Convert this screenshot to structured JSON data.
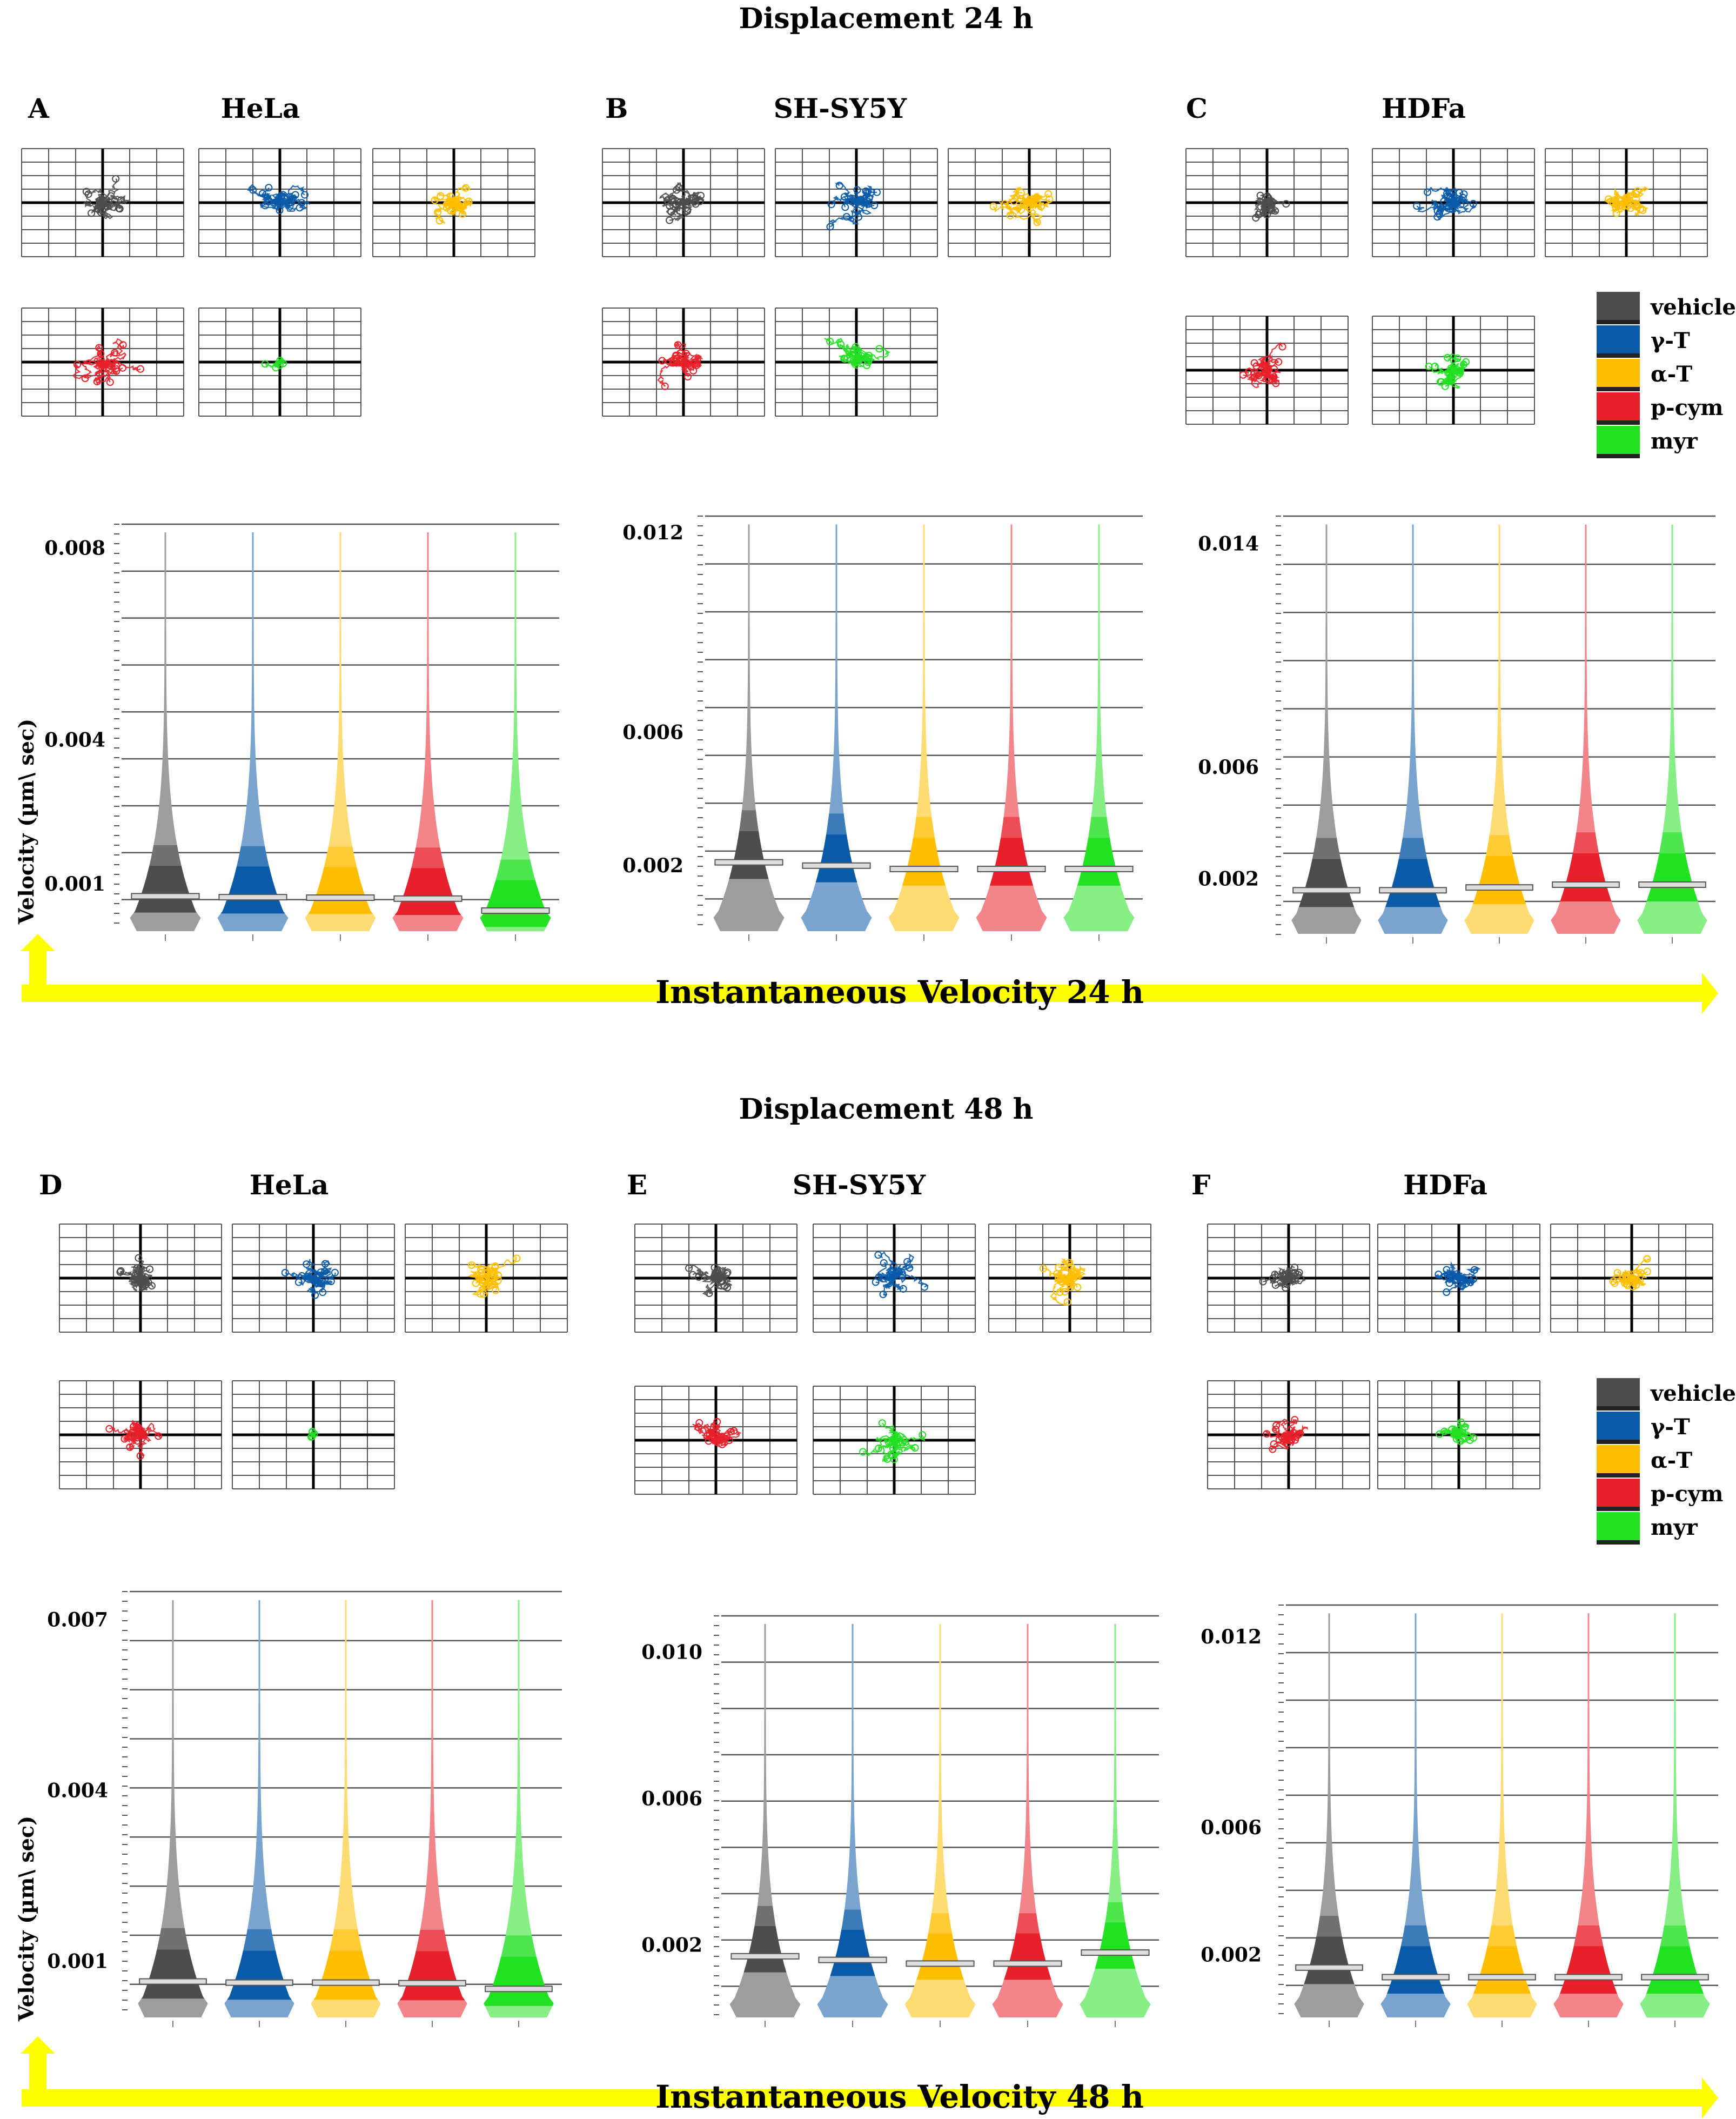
{
  "figure": {
    "section_titles": [
      "Displacement 24 h",
      "Displacement 48 h"
    ],
    "arrow_labels": [
      "Instantaneous  Velocity 24 h",
      "Instantaneous  Velocity 48 h"
    ],
    "ylabel": "Velocity (µm\\ sec)",
    "legend": [
      {
        "label": "vehicle",
        "color": "#4d4d4d"
      },
      {
        "label": "γ-T",
        "color": "#0a5aa8"
      },
      {
        "label": "α-T",
        "color": "#ffbf00"
      },
      {
        "label": "p-cym",
        "color": "#e8202a"
      },
      {
        "label": "myr",
        "color": "#22e022"
      }
    ],
    "colors": {
      "vehicle": "#4d4d4d",
      "gamma": "#0a5aa8",
      "alpha": "#ffbf00",
      "pcym": "#e8202a",
      "myr": "#22e022",
      "arrow": "#ffff00"
    }
  },
  "chart_data": [
    {
      "type": "violin",
      "panel": "A",
      "title": "HeLa",
      "group": "24 h",
      "categories": [
        "vehicle",
        "γ-T",
        "α-T",
        "p-cym",
        "myr"
      ],
      "yticks": [
        "0.008",
        "0.004",
        "0.001"
      ],
      "ylim": [
        0,
        0.0085
      ],
      "grid": true,
      "series": [
        {
          "values": [
            0.00075,
            0.00073,
            0.00072,
            0.0007,
            0.00045
          ]
        }
      ]
    },
    {
      "type": "violin",
      "panel": "B",
      "title": "SH-SY5Y",
      "group": "24 h",
      "categories": [
        "vehicle",
        "γ-T",
        "α-T",
        "p-cym",
        "myr"
      ],
      "yticks": [
        "0.012",
        "0.006",
        "0.002"
      ],
      "ylim": [
        0,
        0.0125
      ],
      "grid": true,
      "series": [
        {
          "values": [
            0.0021,
            0.002,
            0.0019,
            0.0019,
            0.0019
          ]
        }
      ]
    },
    {
      "type": "violin",
      "panel": "C",
      "title": "HDFa",
      "group": "24 h",
      "categories": [
        "vehicle",
        "γ-T",
        "α-T",
        "p-cym",
        "myr"
      ],
      "yticks": [
        "0.014",
        "0.006",
        "0.002"
      ],
      "ylim": [
        0,
        0.015
      ],
      "grid": true,
      "series": [
        {
          "values": [
            0.0016,
            0.0016,
            0.0017,
            0.0018,
            0.0018
          ]
        }
      ]
    },
    {
      "type": "violin",
      "panel": "D",
      "title": "HeLa",
      "group": "48 h",
      "categories": [
        "vehicle",
        "γ-T",
        "α-T",
        "p-cym",
        "myr"
      ],
      "yticks": [
        "0.007",
        "0.004",
        "0.001"
      ],
      "ylim": [
        0,
        0.0075
      ],
      "grid": true,
      "series": [
        {
          "values": [
            0.00065,
            0.00063,
            0.00063,
            0.00062,
            0.00052
          ]
        }
      ]
    },
    {
      "type": "violin",
      "panel": "E",
      "title": "SH-SY5Y",
      "group": "48 h",
      "categories": [
        "vehicle",
        "γ-T",
        "α-T",
        "p-cym",
        "myr"
      ],
      "yticks": [
        "0.010",
        "0.006",
        "0.002"
      ],
      "ylim": [
        0,
        0.011
      ],
      "grid": true,
      "series": [
        {
          "values": [
            0.0017,
            0.0016,
            0.0015,
            0.0015,
            0.0018
          ]
        }
      ]
    },
    {
      "type": "violin",
      "panel": "F",
      "title": "HDFa",
      "group": "48 h",
      "categories": [
        "vehicle",
        "γ-T",
        "α-T",
        "p-cym",
        "myr"
      ],
      "yticks": [
        "0.012",
        "0.006",
        "0.002"
      ],
      "ylim": [
        0,
        0.013
      ],
      "grid": true,
      "series": [
        {
          "values": [
            0.0016,
            0.0013,
            0.0013,
            0.0013,
            0.0013
          ]
        }
      ]
    }
  ]
}
